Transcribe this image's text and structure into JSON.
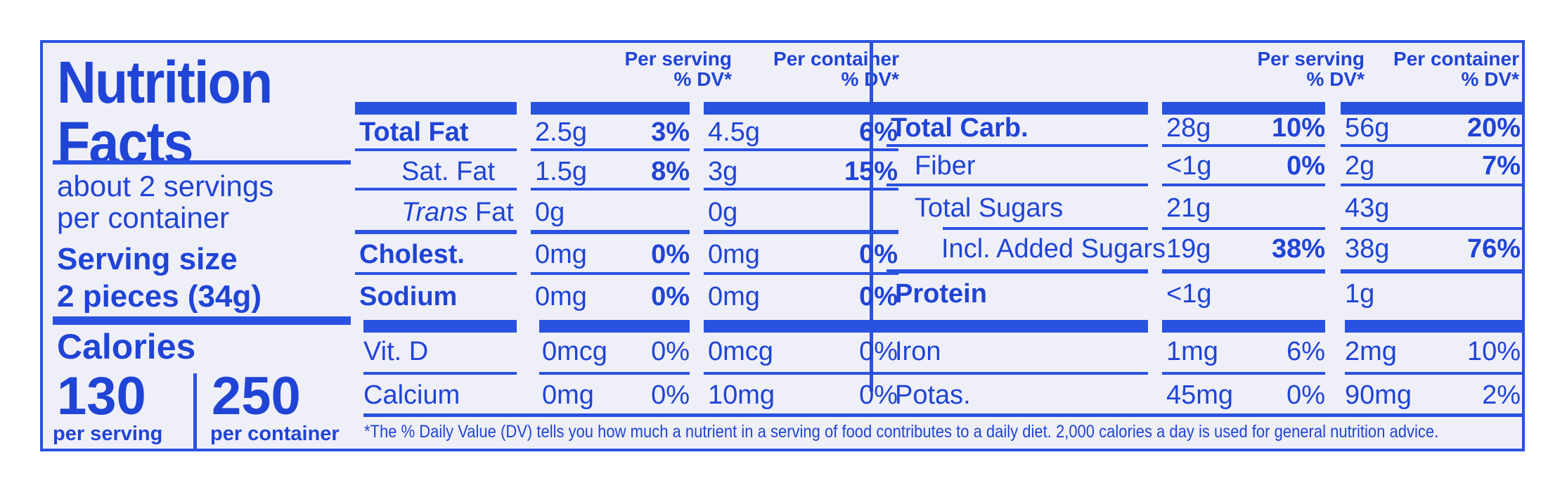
{
  "title_line1": "Nutrition",
  "title_line2": "Facts",
  "servings_line1": "about 2 servings",
  "servings_line2": "per container",
  "serving_size_label": "Serving size",
  "serving_size_value": "2 pieces (34g)",
  "calories_label": "Calories",
  "calories_per_serving": "130",
  "calories_per_serving_label": "per serving",
  "calories_per_container": "250",
  "calories_per_container_label": "per container",
  "headers": {
    "per_serving": "Per serving",
    "per_container": "Per container",
    "dv": "% DV*"
  },
  "left_rows": [
    {
      "name": "Total Fat",
      "serv_amt": "2.5g",
      "serv_dv": "3%",
      "cont_amt": "4.5g",
      "cont_dv": "6%"
    },
    {
      "name": "Sat. Fat",
      "serv_amt": "1.5g",
      "serv_dv": "8%",
      "cont_amt": "3g",
      "cont_dv": "15%"
    },
    {
      "name_italic": "Trans",
      "name": " Fat",
      "serv_amt": "0g",
      "serv_dv": "",
      "cont_amt": "0g",
      "cont_dv": ""
    },
    {
      "name": "Cholest.",
      "serv_amt": "0mg",
      "serv_dv": "0%",
      "cont_amt": "0mg",
      "cont_dv": "0%"
    },
    {
      "name": "Sodium",
      "serv_amt": "0mg",
      "serv_dv": "0%",
      "cont_amt": "0mg",
      "cont_dv": "0%"
    },
    {
      "name": "Vit. D",
      "serv_amt": "0mcg",
      "serv_dv": "0%",
      "cont_amt": "0mcg",
      "cont_dv": "0%"
    },
    {
      "name": "Calcium",
      "serv_amt": "0mg",
      "serv_dv": "0%",
      "cont_amt": "10mg",
      "cont_dv": "0%"
    }
  ],
  "right_rows": [
    {
      "name": "Total Carb.",
      "serv_amt": "28g",
      "serv_dv": "10%",
      "cont_amt": "56g",
      "cont_dv": "20%"
    },
    {
      "name": "Fiber",
      "serv_amt": "<1g",
      "serv_dv": "0%",
      "cont_amt": "2g",
      "cont_dv": "7%"
    },
    {
      "name": "Total Sugars",
      "serv_amt": "21g",
      "serv_dv": "",
      "cont_amt": "43g",
      "cont_dv": ""
    },
    {
      "name": "Incl. Added Sugars",
      "serv_amt": "19g",
      "serv_dv": "38%",
      "cont_amt": "38g",
      "cont_dv": "76%"
    },
    {
      "name": "Protein",
      "serv_amt": "<1g",
      "serv_dv": "",
      "cont_amt": "1g",
      "cont_dv": ""
    },
    {
      "name": "Iron",
      "serv_amt": "1mg",
      "serv_dv": "6%",
      "cont_amt": "2mg",
      "cont_dv": "10%"
    },
    {
      "name": "Potas.",
      "serv_amt": "45mg",
      "serv_dv": "0%",
      "cont_amt": "90mg",
      "cont_dv": "2%"
    }
  ],
  "footnote": "*The % Daily Value (DV) tells you how much a nutrient in a serving of food contributes to a daily diet. 2,000 calories a day is used for general nutrition advice.",
  "colors": {
    "ink": "#1f44d6",
    "background": "#efeff8"
  }
}
